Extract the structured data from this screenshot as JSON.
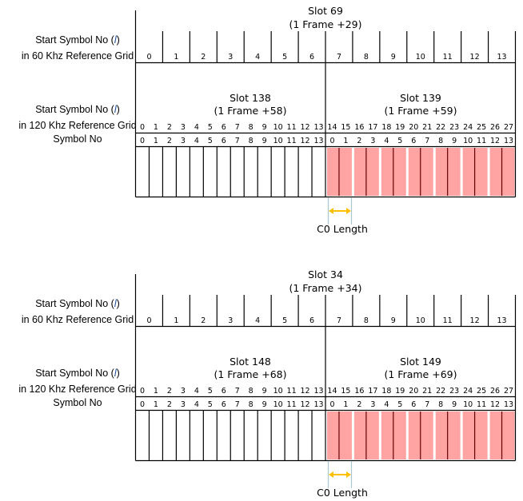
{
  "labels": {
    "start_symbol_60_line1": "Start Symbol No (",
    "l_symbol": "l",
    "close_paren": ")",
    "start_symbol_60_line2": "in 60 Khz Reference Grid",
    "start_symbol_120_line2": "in 120 Khz Reference Grid",
    "symbol_no": "Symbol No",
    "c0_length": "C0 Length"
  },
  "colors": {
    "pink": "#ffa3a3",
    "pair_divider": "#6b0000",
    "arrow": "#ffc000",
    "marker_line": "#a9c7cf"
  },
  "diagrams": [
    {
      "slot60": {
        "name": "Slot 69",
        "frame": "(1 Frame +29)"
      },
      "slot120_left": {
        "name": "Slot 138",
        "frame": "(1 Frame +58)"
      },
      "slot120_right": {
        "name": "Slot 139",
        "frame": "(1 Frame +59)"
      }
    },
    {
      "slot60": {
        "name": "Slot 34",
        "frame": "(1 Frame +34)"
      },
      "slot120_left": {
        "name": "Slot 148",
        "frame": "(1 Frame +68)"
      },
      "slot120_right": {
        "name": "Slot 149",
        "frame": "(1 Frame +69)"
      }
    }
  ],
  "grid60_symbols": [
    "0",
    "1",
    "2",
    "3",
    "4",
    "5",
    "6",
    "7",
    "8",
    "9",
    "10",
    "11",
    "12",
    "13"
  ],
  "grid120_symbols": [
    "0",
    "1",
    "2",
    "3",
    "4",
    "5",
    "6",
    "7",
    "8",
    "9",
    "10",
    "11",
    "12",
    "13",
    "14",
    "15",
    "16",
    "17",
    "18",
    "19",
    "20",
    "21",
    "22",
    "23",
    "24",
    "25",
    "26",
    "27"
  ],
  "symbol_no": [
    "0",
    "1",
    "2",
    "3",
    "4",
    "5",
    "6",
    "7",
    "8",
    "9",
    "10",
    "11",
    "12",
    "13",
    "0",
    "1",
    "2",
    "3",
    "4",
    "5",
    "6",
    "7",
    "8",
    "9",
    "10",
    "11",
    "12",
    "13"
  ]
}
